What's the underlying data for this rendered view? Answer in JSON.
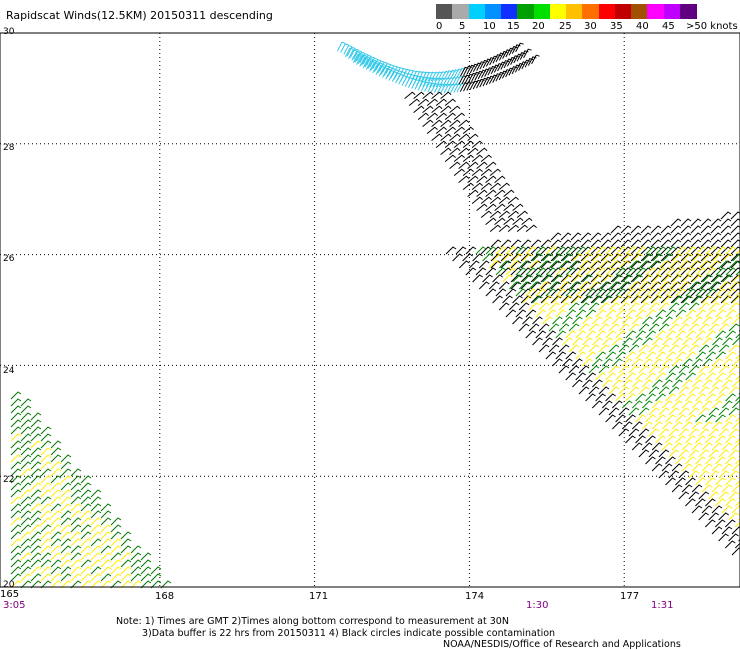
{
  "title": "Rapidscat Winds(12.5KM) 20150311 descending",
  "legend": {
    "labels": [
      "0",
      "5",
      "10",
      "15",
      "20",
      "25",
      "30",
      "35",
      "40",
      "45",
      ">50 knots"
    ],
    "colors": [
      "#555555",
      "#aaaaaa",
      "#00d0ff",
      "#0090ff",
      "#1030ff",
      "#00a000",
      "#00e000",
      "#ffff00",
      "#ffc000",
      "#ff7000",
      "#ff0000",
      "#c00000",
      "#a05000",
      "#ff00ff",
      "#c000ff",
      "#600080"
    ]
  },
  "y_axis": {
    "labels": [
      "30",
      "28",
      "26",
      "24",
      "22",
      "20"
    ]
  },
  "x_axis": {
    "labels": [
      "165",
      "168",
      "171",
      "174",
      "177"
    ]
  },
  "time_labels": [
    "3:05",
    "1:30",
    "1:31"
  ],
  "notes": {
    "line1": "Note: 1) Times are GMT 2)Times along bottom correspond to measurement at 30N",
    "line2": "3)Data buffer is 22 hrs from 20150311 4) Black circles indicate possible contamination",
    "line3": "NOAA/NESDIS/Office of Research and Applications"
  },
  "map_data": {
    "lon_range": [
      165,
      179.5
    ],
    "lat_range": [
      20,
      30
    ],
    "swaths": [
      {
        "name": "northern-arc",
        "color": "#000000"
      },
      {
        "name": "northern-arc-cyan",
        "color": "#33c8e8"
      },
      {
        "name": "eastern-black",
        "color": "#000000"
      },
      {
        "name": "eastern-green",
        "color": "#008800"
      },
      {
        "name": "eastern-yellow",
        "color": "#ffee00"
      },
      {
        "name": "southwest-green",
        "color": "#007700"
      },
      {
        "name": "southwest-yellow",
        "color": "#ffee00"
      }
    ]
  }
}
